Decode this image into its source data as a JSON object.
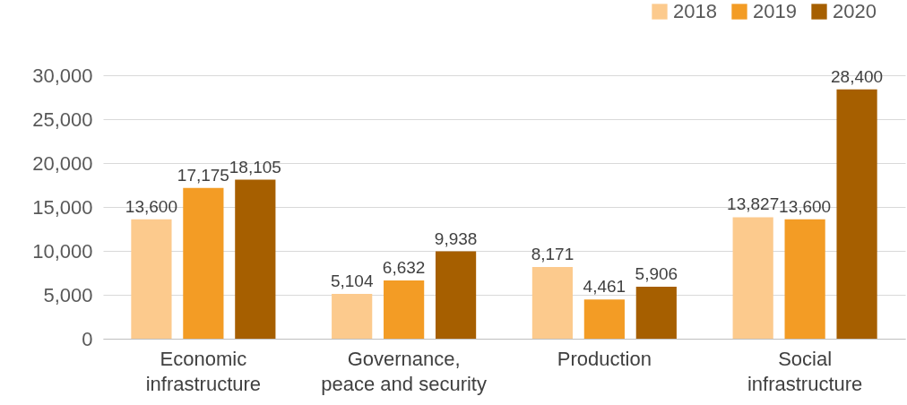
{
  "chart_data": {
    "type": "bar",
    "categories": [
      "Economic infrastructure",
      "Governance, peace and security",
      "Production",
      "Social infrastructure"
    ],
    "series": [
      {
        "name": "2018",
        "color": "#fcca8d",
        "values": [
          13600,
          5104,
          8171,
          13827
        ],
        "value_labels": [
          "13,600",
          "5,104",
          "8,171",
          "13,827"
        ]
      },
      {
        "name": "2019",
        "color": "#f39c25",
        "values": [
          17175,
          6632,
          4461,
          13600
        ],
        "value_labels": [
          "17,175",
          "6,632",
          "4,461",
          "13,600"
        ]
      },
      {
        "name": "2020",
        "color": "#a65f00",
        "values": [
          18105,
          9938,
          5906,
          28400
        ],
        "value_labels": [
          "18,105",
          "9,938",
          "5,906",
          "28,400"
        ]
      }
    ],
    "ylim": [
      0,
      30000
    ],
    "yticks": [
      0,
      {
        "value": 5000,
        "label": "5,000"
      },
      {
        "value": 10000,
        "label": "10,000"
      },
      {
        "value": 15000,
        "label": "15,000"
      },
      {
        "value": 20000,
        "label": "20,000"
      },
      {
        "value": 25000,
        "label": "25,000"
      },
      {
        "value": 30000,
        "label": "30,000"
      }
    ],
    "grid": "y",
    "legend": "top right"
  }
}
